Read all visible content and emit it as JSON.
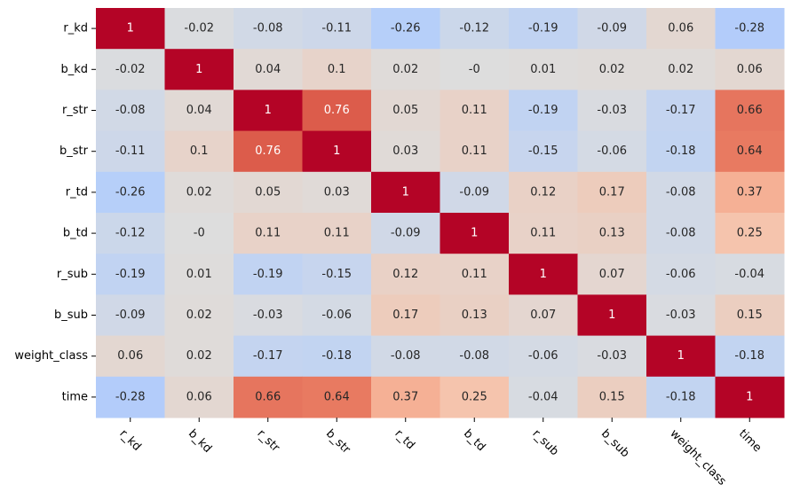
{
  "chart_data": {
    "type": "heatmap",
    "title": "",
    "colormap": "coolwarm",
    "color_range": [
      -1,
      1
    ],
    "colorbar": false,
    "row_labels": [
      "r_kd",
      "b_kd",
      "r_str",
      "b_str",
      "r_td",
      "b_td",
      "r_sub",
      "b_sub",
      "weight_class",
      "time"
    ],
    "col_labels": [
      "r_kd",
      "b_kd",
      "r_str",
      "b_str",
      "r_td",
      "b_td",
      "r_sub",
      "b_sub",
      "weight_class",
      "time"
    ],
    "x_tick_rotation_deg": -45,
    "values": [
      [
        1,
        -0.02,
        -0.08,
        -0.11,
        -0.26,
        -0.12,
        -0.19,
        -0.09,
        0.06,
        -0.28
      ],
      [
        -0.02,
        1,
        0.04,
        0.1,
        0.02,
        -0.0,
        0.01,
        0.02,
        0.02,
        0.06
      ],
      [
        -0.08,
        0.04,
        1,
        0.76,
        0.05,
        0.11,
        -0.19,
        -0.03,
        -0.17,
        0.66
      ],
      [
        -0.11,
        0.1,
        0.76,
        1,
        0.03,
        0.11,
        -0.15,
        -0.06,
        -0.18,
        0.64
      ],
      [
        -0.26,
        0.02,
        0.05,
        0.03,
        1,
        -0.09,
        0.12,
        0.17,
        -0.08,
        0.37
      ],
      [
        -0.12,
        -0.0,
        0.11,
        0.11,
        -0.09,
        1,
        0.11,
        0.13,
        -0.08,
        0.25
      ],
      [
        -0.19,
        0.01,
        -0.19,
        -0.15,
        0.12,
        0.11,
        1,
        0.07,
        -0.06,
        -0.04
      ],
      [
        -0.09,
        0.02,
        -0.03,
        -0.06,
        0.17,
        0.13,
        0.07,
        1,
        -0.03,
        0.15
      ],
      [
        0.06,
        0.02,
        -0.17,
        -0.18,
        -0.08,
        -0.08,
        -0.06,
        -0.03,
        1,
        -0.18
      ],
      [
        -0.28,
        0.06,
        0.66,
        0.64,
        0.37,
        0.25,
        -0.04,
        0.15,
        -0.18,
        1
      ]
    ],
    "cell_labels": [
      [
        "1",
        "-0.02",
        "-0.08",
        "-0.11",
        "-0.26",
        "-0.12",
        "-0.19",
        "-0.09",
        "0.06",
        "-0.28"
      ],
      [
        "-0.02",
        "1",
        "0.04",
        "0.1",
        "0.02",
        "-0",
        "0.01",
        "0.02",
        "0.02",
        "0.06"
      ],
      [
        "-0.08",
        "0.04",
        "1",
        "0.76",
        "0.05",
        "0.11",
        "-0.19",
        "-0.03",
        "-0.17",
        "0.66"
      ],
      [
        "-0.11",
        "0.1",
        "0.76",
        "1",
        "0.03",
        "0.11",
        "-0.15",
        "-0.06",
        "-0.18",
        "0.64"
      ],
      [
        "-0.26",
        "0.02",
        "0.05",
        "0.03",
        "1",
        "-0.09",
        "0.12",
        "0.17",
        "-0.08",
        "0.37"
      ],
      [
        "-0.12",
        "-0",
        "0.11",
        "0.11",
        "-0.09",
        "1",
        "0.11",
        "0.13",
        "-0.08",
        "0.25"
      ],
      [
        "-0.19",
        "0.01",
        "-0.19",
        "-0.15",
        "0.12",
        "0.11",
        "1",
        "0.07",
        "-0.06",
        "-0.04"
      ],
      [
        "-0.09",
        "0.02",
        "-0.03",
        "-0.06",
        "0.17",
        "0.13",
        "0.07",
        "1",
        "-0.03",
        "0.15"
      ],
      [
        "0.06",
        "0.02",
        "-0.17",
        "-0.18",
        "-0.08",
        "-0.08",
        "-0.06",
        "-0.03",
        "1",
        "-0.18"
      ],
      [
        "-0.28",
        "0.06",
        "0.66",
        "0.64",
        "0.37",
        "0.25",
        "-0.04",
        "0.15",
        "-0.18",
        "1"
      ]
    ]
  }
}
